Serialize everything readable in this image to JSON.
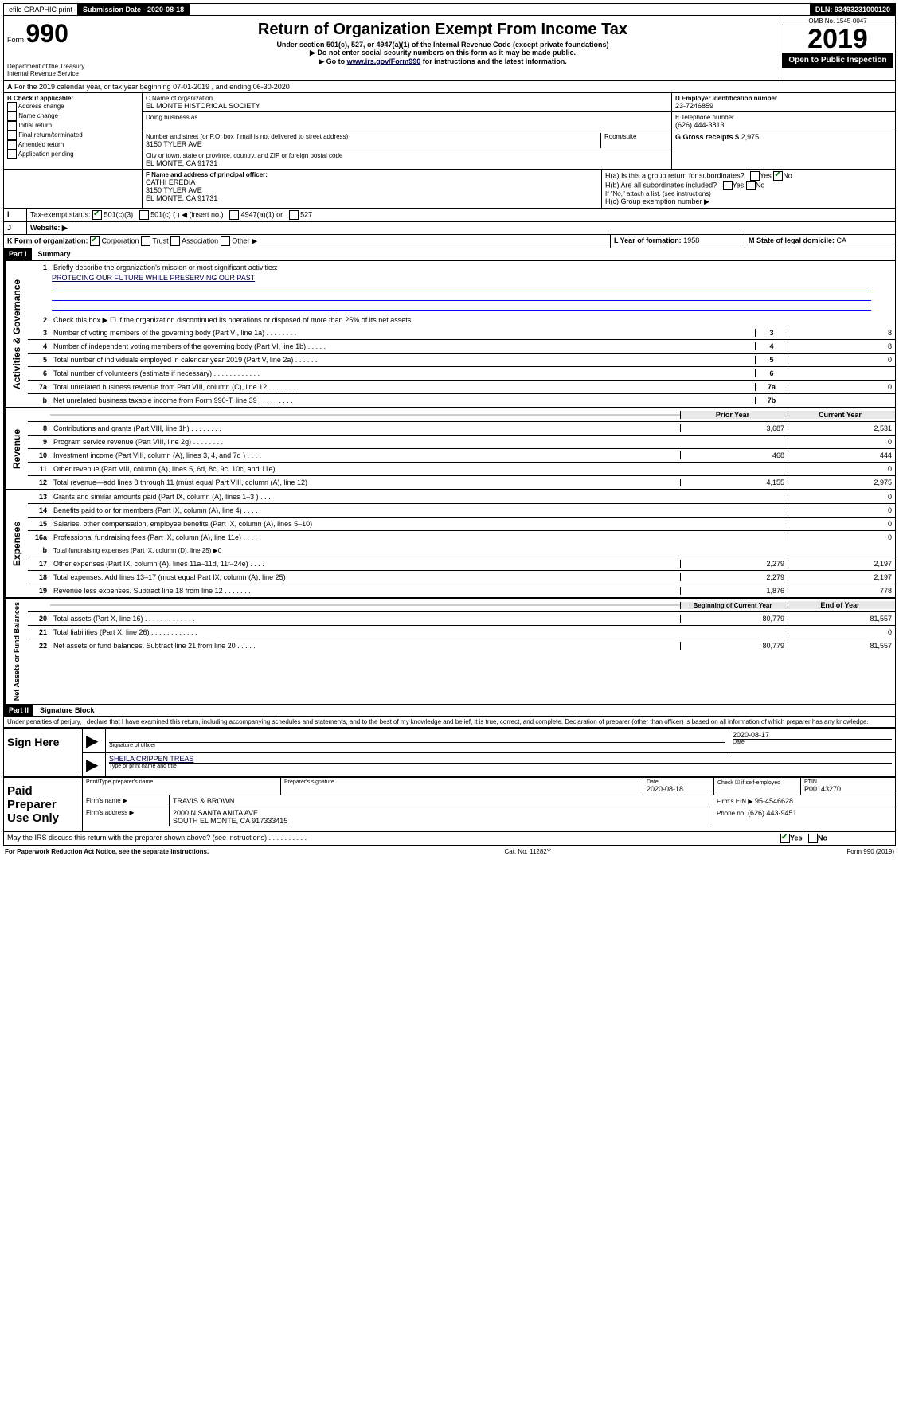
{
  "topbar": {
    "efile": "efile GRAPHIC print",
    "subdate_label": "Submission Date - 2020-08-18",
    "dln": "DLN: 93493231000120"
  },
  "header": {
    "form_prefix": "Form",
    "form_no": "990",
    "dept": "Department of the Treasury\nInternal Revenue Service",
    "title": "Return of Organization Exempt From Income Tax",
    "sub1": "Under section 501(c), 527, or 4947(a)(1) of the Internal Revenue Code (except private foundations)",
    "sub2": "▶ Do not enter social security numbers on this form as it may be made public.",
    "sub3_pre": "▶ Go to ",
    "sub3_link": "www.irs.gov/Form990",
    "sub3_post": " for instructions and the latest information.",
    "omb": "OMB No. 1545-0047",
    "year": "2019",
    "inspect": "Open to Public Inspection"
  },
  "A": {
    "text": "For the 2019 calendar year, or tax year beginning 07-01-2019    , and ending 06-30-2020"
  },
  "B": {
    "label": "B Check if applicable:",
    "items": [
      "Address change",
      "Name change",
      "Initial return",
      "Final return/terminated",
      "Amended return",
      "Application pending"
    ]
  },
  "C": {
    "name_label": "C Name of organization",
    "name": "EL MONTE HISTORICAL SOCIETY",
    "dba": "Doing business as",
    "addr_label": "Number and street (or P.O. box if mail is not delivered to street address)",
    "room": "Room/suite",
    "addr": "3150 TYLER AVE",
    "city_label": "City or town, state or province, country, and ZIP or foreign postal code",
    "city": "EL MONTE, CA  91731"
  },
  "D": {
    "label": "D Employer identification number",
    "val": "23-7246859"
  },
  "E": {
    "label": "E Telephone number",
    "val": "(626) 444-3813"
  },
  "G": {
    "label": "G Gross receipts $",
    "val": "2,975"
  },
  "F": {
    "label": "F Name and address of principal officer:",
    "name": "CATHI EREDIA",
    "addr": "3150 TYLER AVE",
    "city": "EL MONTE, CA  91731"
  },
  "H": {
    "a": "H(a)  Is this a group return for subordinates?",
    "b": "H(b)  Are all subordinates included?",
    "b_note": "If \"No,\" attach a list. (see instructions)",
    "c": "H(c)  Group exemption number ▶"
  },
  "I": {
    "label": "Tax-exempt status:",
    "c3": "501(c)(3)",
    "c": "501(c) (  ) ◀ (insert no.)",
    "a1": "4947(a)(1) or",
    "s527": "527"
  },
  "J": {
    "label": "Website: ▶"
  },
  "K": {
    "label": "K Form of organization:",
    "corp": "Corporation",
    "trust": "Trust",
    "assoc": "Association",
    "other": "Other ▶"
  },
  "L": {
    "label": "L Year of formation:",
    "val": "1958"
  },
  "M": {
    "label": "M State of legal domicile:",
    "val": "CA"
  },
  "part1": {
    "header": "Part I",
    "title": "Summary",
    "l1": "Briefly describe the organization's mission or most significant activities:",
    "mission": "PROTECING OUR FUTURE WHILE PRESERVING OUR PAST",
    "l2": "Check this box ▶ ☐  if the organization discontinued its operations or disposed of more than 25% of its net assets.",
    "lines_gov": [
      {
        "n": "3",
        "t": "Number of voting members of the governing body (Part VI, line 1a)  .    .    .    .    .    .    .    .",
        "c": "3",
        "v": "8"
      },
      {
        "n": "4",
        "t": "Number of independent voting members of the governing body (Part VI, line 1b)  .    .    .    .    .",
        "c": "4",
        "v": "8"
      },
      {
        "n": "5",
        "t": "Total number of individuals employed in calendar year 2019 (Part V, line 2a)  .    .    .    .    .    .",
        "c": "5",
        "v": "0"
      },
      {
        "n": "6",
        "t": "Total number of volunteers (estimate if necessary)  .    .    .    .    .    .    .    .    .    .    .    .",
        "c": "6",
        "v": ""
      },
      {
        "n": "7a",
        "t": "Total unrelated business revenue from Part VIII, column (C), line 12  .    .    .    .    .    .    .    .",
        "c": "7a",
        "v": "0"
      },
      {
        "n": "b",
        "t": "Net unrelated business taxable income from Form 990-T, line 39  .    .    .    .    .    .    .    .    .",
        "c": "7b",
        "v": ""
      }
    ],
    "col_prior": "Prior Year",
    "col_current": "Current Year",
    "lines_rev": [
      {
        "n": "8",
        "t": "Contributions and grants (Part VIII, line 1h)  .    .    .    .    .    .    .    .",
        "p": "3,687",
        "c": "2,531"
      },
      {
        "n": "9",
        "t": "Program service revenue (Part VIII, line 2g)  .    .    .    .    .    .    .    .",
        "p": "",
        "c": "0"
      },
      {
        "n": "10",
        "t": "Investment income (Part VIII, column (A), lines 3, 4, and 7d )  .    .    .    .",
        "p": "468",
        "c": "444"
      },
      {
        "n": "11",
        "t": "Other revenue (Part VIII, column (A), lines 5, 6d, 8c, 9c, 10c, and 11e)",
        "p": "",
        "c": "0"
      },
      {
        "n": "12",
        "t": "Total revenue—add lines 8 through 11 (must equal Part VIII, column (A), line 12)",
        "p": "4,155",
        "c": "2,975"
      }
    ],
    "lines_exp": [
      {
        "n": "13",
        "t": "Grants and similar amounts paid (Part IX, column (A), lines 1–3 )  .    .    .",
        "p": "",
        "c": "0"
      },
      {
        "n": "14",
        "t": "Benefits paid to or for members (Part IX, column (A), line 4)  .    .    .    .",
        "p": "",
        "c": "0"
      },
      {
        "n": "15",
        "t": "Salaries, other compensation, employee benefits (Part IX, column (A), lines 5–10)",
        "p": "",
        "c": "0"
      },
      {
        "n": "16a",
        "t": "Professional fundraising fees (Part IX, column (A), line 11e)  .    .    .    .    .",
        "p": "",
        "c": "0"
      }
    ],
    "l16b": "Total fundraising expenses (Part IX, column (D), line 25) ▶0",
    "lines_exp2": [
      {
        "n": "17",
        "t": "Other expenses (Part IX, column (A), lines 11a–11d, 11f–24e)  .    .    .    .",
        "p": "2,279",
        "c": "2,197"
      },
      {
        "n": "18",
        "t": "Total expenses. Add lines 13–17 (must equal Part IX, column (A), line 25)",
        "p": "2,279",
        "c": "2,197"
      },
      {
        "n": "19",
        "t": "Revenue less expenses. Subtract line 18 from line 12  .    .    .    .    .    .    .",
        "p": "1,876",
        "c": "778"
      }
    ],
    "col_begin": "Beginning of Current Year",
    "col_end": "End of Year",
    "lines_net": [
      {
        "n": "20",
        "t": "Total assets (Part X, line 16)  .    .    .    .    .    .    .    .    .    .    .    .    .",
        "p": "80,779",
        "c": "81,557"
      },
      {
        "n": "21",
        "t": "Total liabilities (Part X, line 26)  .    .    .    .    .    .    .    .    .    .    .    .",
        "p": "",
        "c": "0"
      },
      {
        "n": "22",
        "t": "Net assets or fund balances. Subtract line 21 from line 20  .    .    .    .    .",
        "p": "80,779",
        "c": "81,557"
      }
    ]
  },
  "part2": {
    "header": "Part II",
    "title": "Signature Block",
    "perjury": "Under penalties of perjury, I declare that I have examined this return, including accompanying schedules and statements, and to the best of my knowledge and belief, it is true, correct, and complete. Declaration of preparer (other than officer) is based on all information of which preparer has any knowledge."
  },
  "sign": {
    "officer_label": "Sign Here",
    "sig_label": "Signature of officer",
    "date": "2020-08-17",
    "date_label": "Date",
    "name": "SHEILA CRIPPEN  TREAS",
    "name_label": "Type or print name and title"
  },
  "prep": {
    "label": "Paid Preparer Use Only",
    "h1": "Print/Type preparer's name",
    "h2": "Preparer's signature",
    "h3": "Date",
    "h3v": "2020-08-18",
    "h4": "Check ☑ if self-employed",
    "h5": "PTIN",
    "h5v": "P00143270",
    "firm_label": "Firm's name    ▶",
    "firm": "TRAVIS & BROWN",
    "ein_label": "Firm's EIN ▶",
    "ein": "95-4546628",
    "addr_label": "Firm's address ▶",
    "addr1": "2000 N SANTA ANITA AVE",
    "addr2": "SOUTH EL MONTE, CA  917333415",
    "phone_label": "Phone no.",
    "phone": "(626) 443-9451"
  },
  "discuss": "May the IRS discuss this return with the preparer shown above? (see instructions)    .    .    .    .    .    .    .    .    .    .",
  "footer": {
    "pra": "For Paperwork Reduction Act Notice, see the separate instructions.",
    "cat": "Cat. No. 11282Y",
    "form": "Form 990 (2019)"
  },
  "labels": {
    "yes": "Yes",
    "no": "No",
    "b": "b",
    "vert_gov": "Activities & Governance",
    "vert_rev": "Revenue",
    "vert_exp": "Expenses",
    "vert_net": "Net Assets or Fund Balances"
  }
}
